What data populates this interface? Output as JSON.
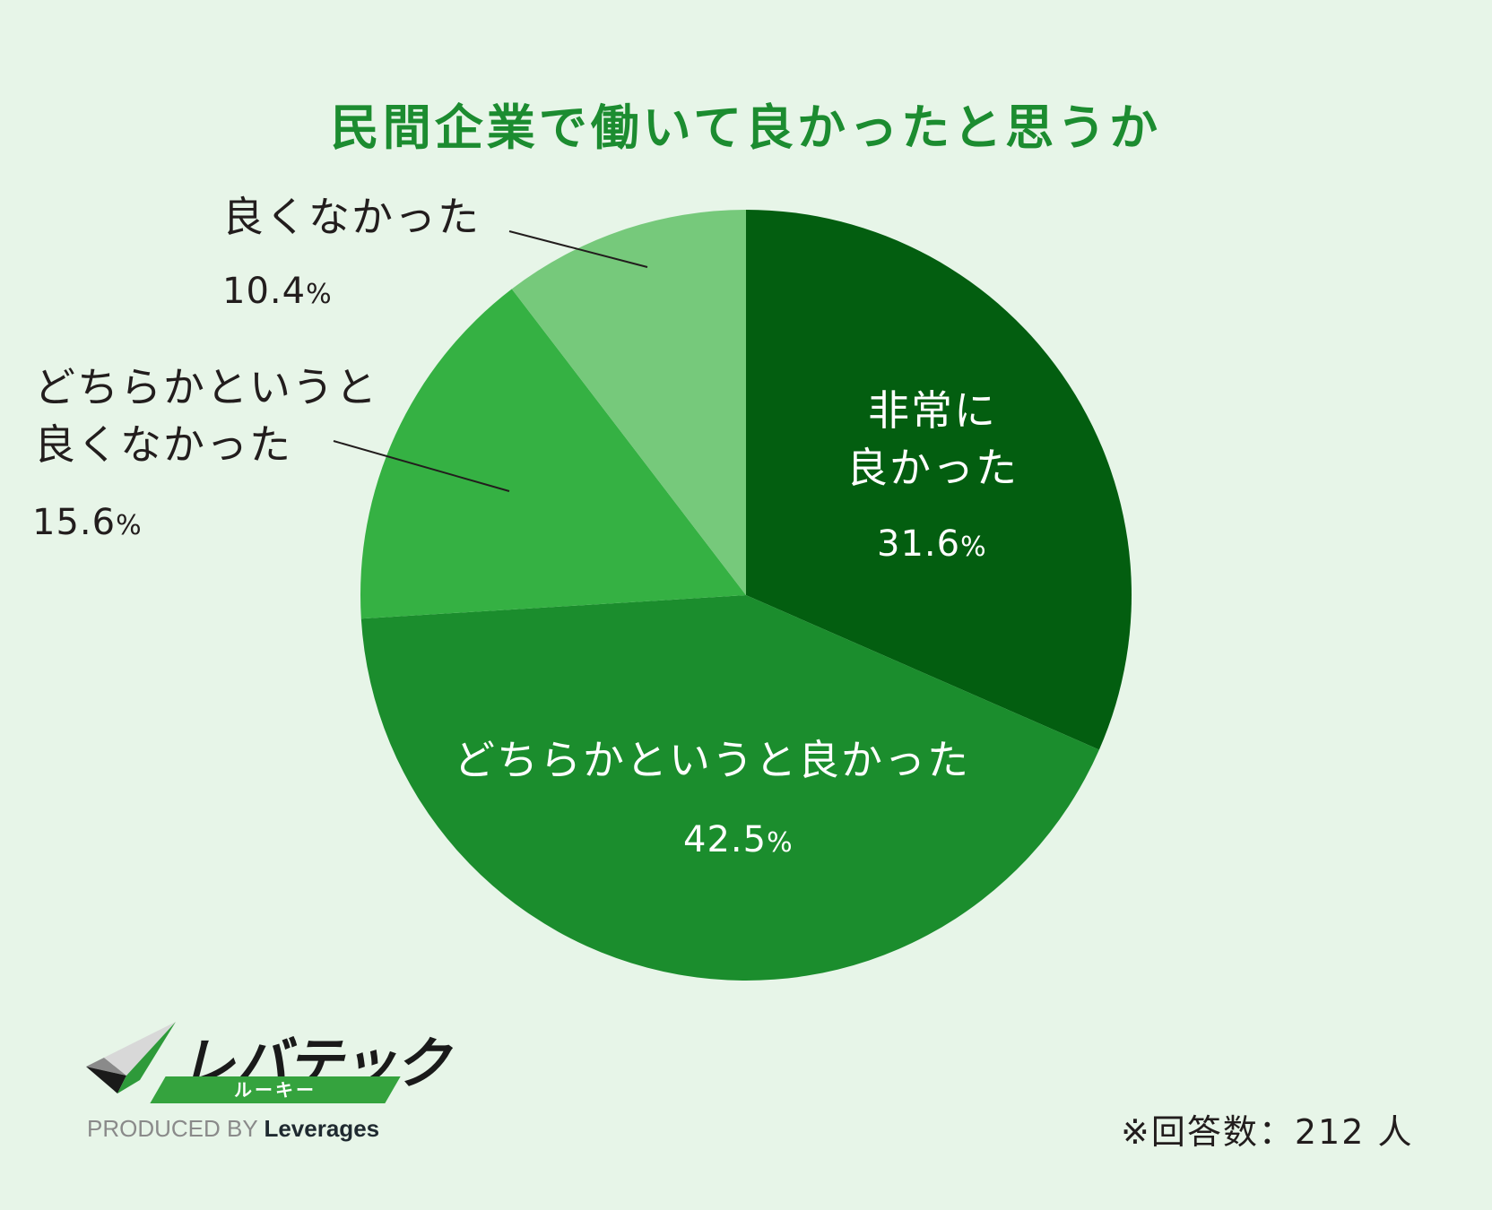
{
  "chart_data": {
    "type": "pie",
    "title": "民間企業で働いて良かったと思うか",
    "slices": [
      {
        "label": "非常に良かった",
        "label_lines": [
          "非常に",
          "良かった"
        ],
        "value": 31.6,
        "display": "31.6",
        "color": "#035e10"
      },
      {
        "label": "どちらかというと良かった",
        "label_lines": [
          "どちらかというと良かった"
        ],
        "value": 42.5,
        "display": "42.5",
        "color": "#1b8d2d"
      },
      {
        "label": "どちらかというと良くなかった",
        "label_lines": [
          "どちらかというと",
          "良くなかった"
        ],
        "value": 15.6,
        "display": "15.6",
        "color": "#35b143"
      },
      {
        "label": "良くなかった",
        "label_lines": [
          "良くなかった"
        ],
        "value": 10.4,
        "display": "10.4",
        "color": "#76c97b"
      }
    ],
    "unit": "%",
    "start": "12 o'clock, clockwise"
  },
  "footer": {
    "respondents": "※回答数：212 人"
  },
  "logo": {
    "brand": "レバテック",
    "sub": "ルーキー",
    "produced_by": "PRODUCED BY",
    "company": "Leverages"
  }
}
